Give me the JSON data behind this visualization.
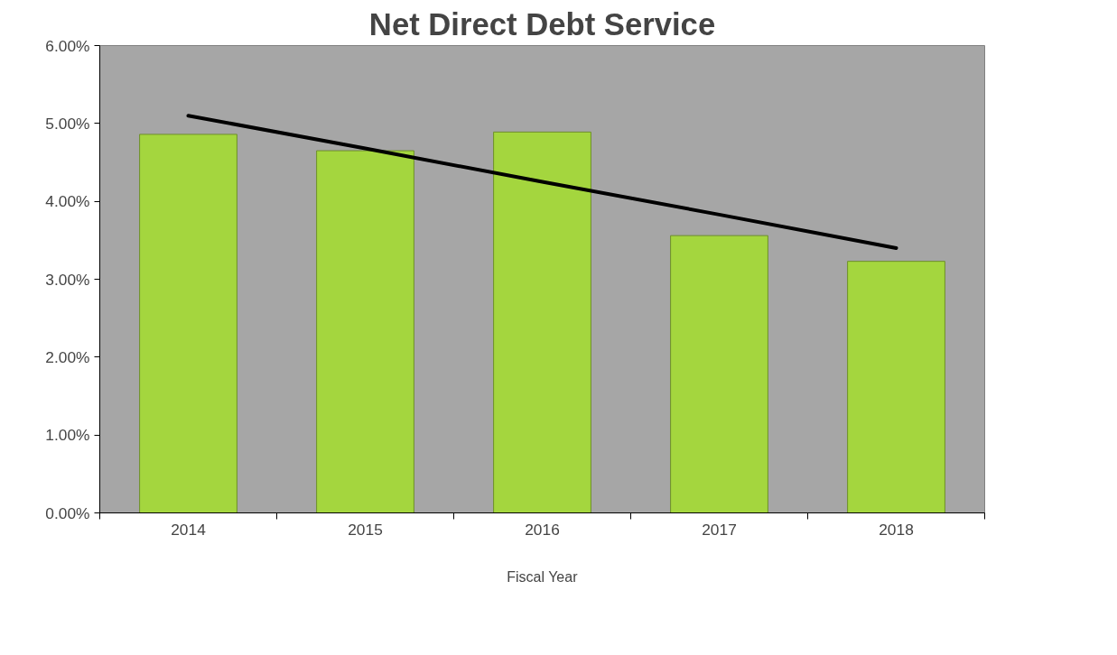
{
  "chart_data": {
    "type": "bar",
    "title": "Net Direct Debt Service",
    "xlabel": "Fiscal Year",
    "categories": [
      "2014",
      "2015",
      "2016",
      "2017",
      "2018"
    ],
    "series": [
      {
        "color": "#a4d63e",
        "values": [
          4.86,
          4.65,
          4.89,
          3.56,
          3.23
        ]
      },
      {
        "type": "line",
        "color": "#000000",
        "values": [
          5.1,
          4.68,
          4.25,
          3.83,
          3.4
        ]
      }
    ],
    "ylim": [
      0,
      6
    ],
    "yticks": [
      {
        "value": 0,
        "label": "0.00%"
      },
      {
        "value": 1,
        "label": "1.00%"
      },
      {
        "value": 2,
        "label": "2.00%"
      },
      {
        "value": 3,
        "label": "3.00%"
      },
      {
        "value": 4,
        "label": "4.00%"
      },
      {
        "value": 5,
        "label": "5.00%"
      },
      {
        "value": 6,
        "label": "6.00%"
      }
    ],
    "grid": false
  }
}
